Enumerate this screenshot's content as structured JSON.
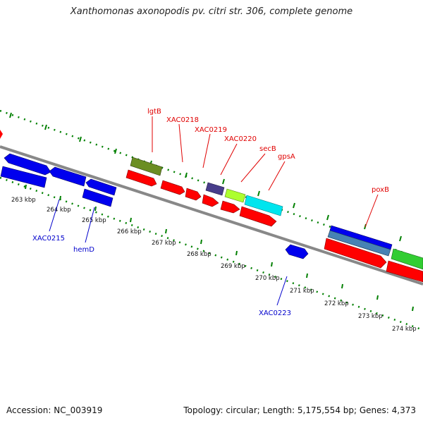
{
  "title": "Xanthomonas axonopodis pv. citri str. 306, complete genome",
  "footer": {
    "accession": "Accession: NC_003919",
    "topology": "Topology: circular; Length: 5,175,554 bp; Genes: 4,373"
  },
  "colors": {
    "backbone": "#888888",
    "ticks": "#008000",
    "gene_label_upper": "#e00000",
    "gene_label_lower": "#0000cc",
    "red": "#ff0000",
    "blue": "#0000ee",
    "olive": "#6b8e23",
    "purple": "#483d8b",
    "yellowgreen": "#adff2f",
    "cyan": "#00e5ee",
    "steelblue": "#4682b4",
    "green": "#32cd32"
  },
  "scale_labels": [
    "263 kbp",
    "264 kbp",
    "265 kbp",
    "266 kbp",
    "267 kbp",
    "268 kbp",
    "269 kbp",
    "270 kbp",
    "271 kbp",
    "272 kbp",
    "273 kbp",
    "274 kbp"
  ],
  "upper_gene_labels": [
    "lgtB",
    "XAC0218",
    "XAC0219",
    "XAC0220",
    "secB",
    "gpsA",
    "poxB"
  ],
  "lower_gene_labels": [
    "XAC0215",
    "hemD",
    "XAC0223"
  ]
}
